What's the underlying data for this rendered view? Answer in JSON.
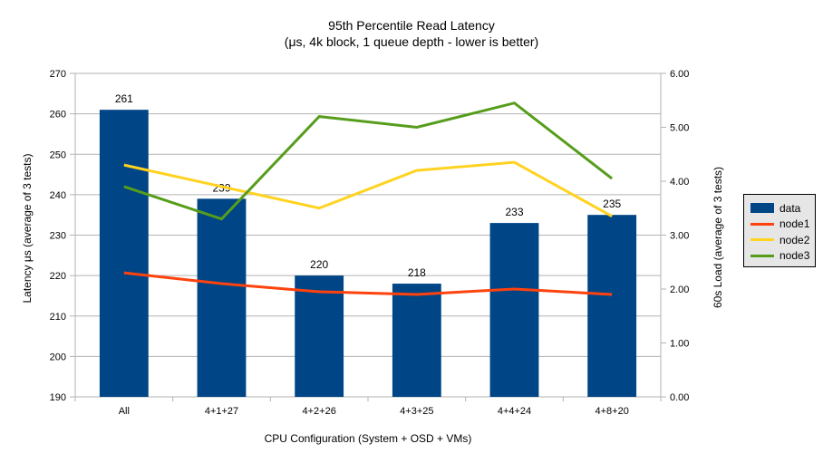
{
  "title": "95th Percentile Read Latency",
  "subtitle": "(μs, 4k block, 1 queue depth - lower is better)",
  "chart_data": {
    "type": "bar+line",
    "categories": [
      "All",
      "4+1+27",
      "4+2+26",
      "4+3+25",
      "4+4+24",
      "4+8+20"
    ],
    "bar_series": {
      "name": "data",
      "color": "#004586",
      "axis": "left",
      "values": [
        261,
        239,
        220,
        218,
        233,
        235
      ],
      "labels": [
        "261",
        "239",
        "220",
        "218",
        "233",
        "235"
      ]
    },
    "line_series": [
      {
        "name": "node1",
        "color": "#FF420E",
        "axis": "right",
        "values": [
          2.3,
          2.1,
          1.95,
          1.9,
          2.0,
          1.9
        ]
      },
      {
        "name": "node2",
        "color": "#FFD320",
        "axis": "right",
        "values": [
          4.3,
          3.9,
          3.5,
          4.2,
          4.35,
          3.35
        ]
      },
      {
        "name": "node3",
        "color": "#579D1C",
        "axis": "right",
        "values": [
          3.9,
          3.3,
          5.2,
          5.0,
          5.45,
          4.05
        ]
      }
    ],
    "left_axis": {
      "title": "Latency μs (average of 3 tests)",
      "min": 190,
      "max": 270,
      "ticks": [
        190,
        200,
        210,
        220,
        230,
        240,
        250,
        260,
        270
      ]
    },
    "right_axis": {
      "title": "60s Load (average of 3 tests)",
      "min": 0,
      "max": 6,
      "ticks": [
        "0.00",
        "1.00",
        "2.00",
        "3.00",
        "4.00",
        "5.00",
        "6.00"
      ]
    },
    "x_axis": {
      "title": "CPU Configuration (System + OSD + VMs)"
    },
    "legend": {
      "position": "right",
      "items": [
        "data",
        "node1",
        "node2",
        "node3"
      ]
    },
    "grid": "horizontal",
    "styles": {
      "grid_color": "#b3b3b3",
      "axis_color": "#b3b3b3",
      "text_color": "#000000",
      "legend_bg": "#e6e6e6",
      "legend_border": "#000000",
      "background": "#ffffff"
    }
  }
}
